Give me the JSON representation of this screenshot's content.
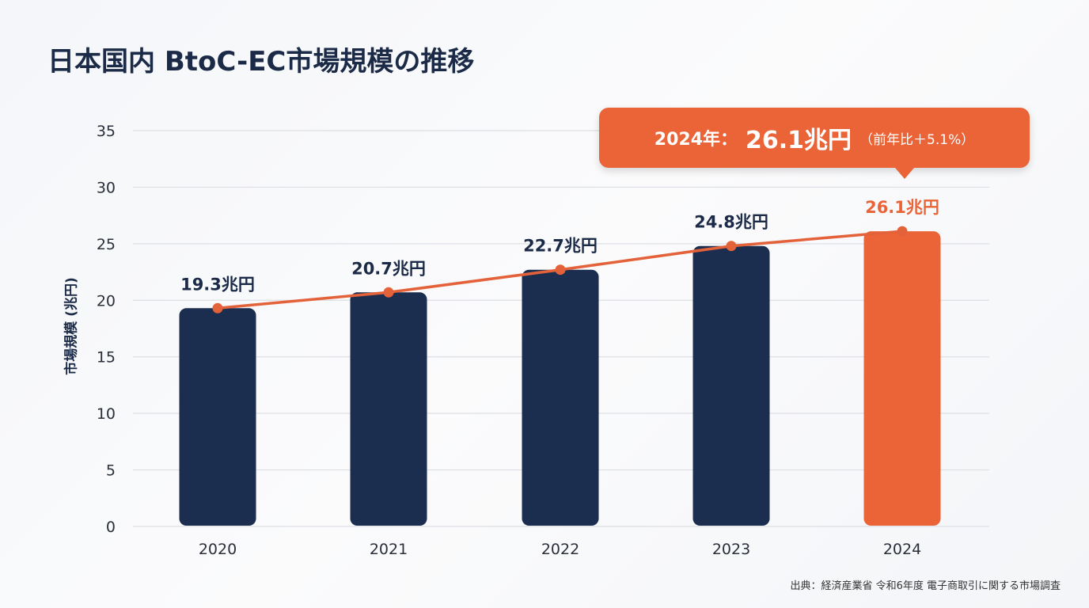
{
  "page": {
    "title": "日本国内 BtoC-EC市場規模の推移",
    "source": "出典：経済産業省 令和6年度 電子商取引に関する市場調査"
  },
  "callout": {
    "year_text": "2024年：",
    "value_text": "26.1兆円",
    "note_text": "（前年比＋5.1%）"
  },
  "colors": {
    "bar": "#1c2e50",
    "highlight": "#ea6437",
    "line": "#e4623a",
    "grid": "#dcdfe4",
    "text": "#1b2a47"
  },
  "chart_data": {
    "type": "bar",
    "title": "日本国内 BtoC-EC市場規模の推移",
    "xlabel": "",
    "ylabel": "市場規模 (兆円)",
    "categories": [
      "2020",
      "2021",
      "2022",
      "2023",
      "2024"
    ],
    "values": [
      19.3,
      20.7,
      22.7,
      24.8,
      26.1
    ],
    "data_labels": [
      "19.3兆円",
      "20.7兆円",
      "22.7兆円",
      "24.8兆円",
      "26.1兆円"
    ],
    "highlight_index": 4,
    "overlay_line": true,
    "ylim": [
      0,
      35
    ],
    "yticks": [
      0,
      5,
      10,
      15,
      20,
      25,
      30,
      35
    ],
    "grid": true,
    "legend": "none"
  }
}
